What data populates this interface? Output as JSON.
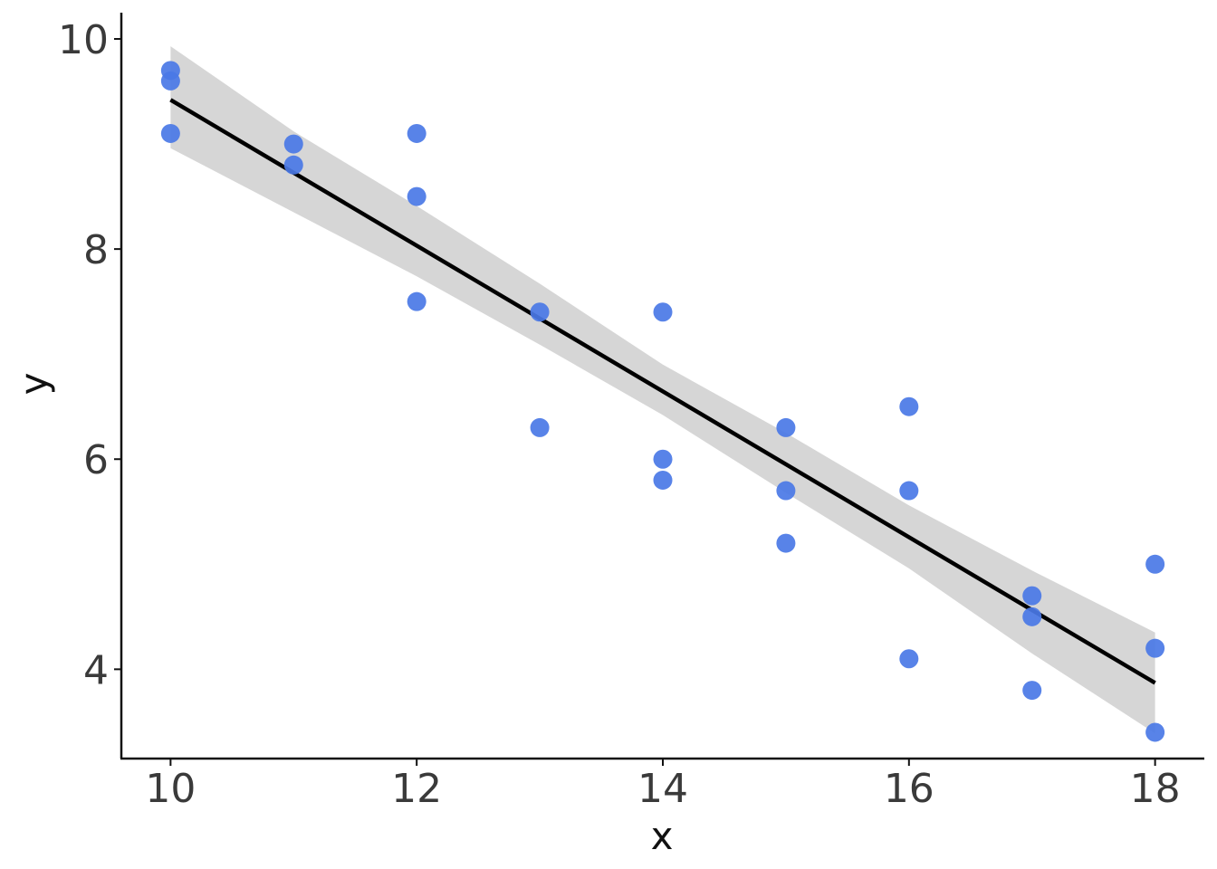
{
  "chart_data": {
    "type": "scatter",
    "xlabel": "x",
    "ylabel": "y",
    "xlim": [
      9.6,
      18.4
    ],
    "ylim": [
      3.15,
      10.25
    ],
    "xticks": [
      10,
      12,
      14,
      16,
      18
    ],
    "yticks": [
      4,
      6,
      8,
      10
    ],
    "grid": false,
    "legend": "none",
    "colors": {
      "points": "#4a78e6",
      "line": "#000000",
      "band": "#d6d6d6",
      "axis": "#111111",
      "tick_label": "#3a3a3a"
    },
    "points": [
      {
        "x": 10,
        "y": 9.7
      },
      {
        "x": 10,
        "y": 9.6
      },
      {
        "x": 10,
        "y": 9.1
      },
      {
        "x": 11,
        "y": 9.0
      },
      {
        "x": 11,
        "y": 8.8
      },
      {
        "x": 12,
        "y": 9.1
      },
      {
        "x": 12,
        "y": 8.5
      },
      {
        "x": 12,
        "y": 7.5
      },
      {
        "x": 13,
        "y": 7.4
      },
      {
        "x": 13,
        "y": 6.3
      },
      {
        "x": 14,
        "y": 7.4
      },
      {
        "x": 14,
        "y": 6.0
      },
      {
        "x": 14,
        "y": 5.8
      },
      {
        "x": 15,
        "y": 6.3
      },
      {
        "x": 15,
        "y": 5.7
      },
      {
        "x": 15,
        "y": 5.2
      },
      {
        "x": 16,
        "y": 6.5
      },
      {
        "x": 16,
        "y": 5.7
      },
      {
        "x": 16,
        "y": 4.1
      },
      {
        "x": 17,
        "y": 4.7
      },
      {
        "x": 17,
        "y": 4.5
      },
      {
        "x": 17,
        "y": 3.8
      },
      {
        "x": 18,
        "y": 5.0
      },
      {
        "x": 18,
        "y": 4.2
      },
      {
        "x": 18,
        "y": 3.4
      }
    ],
    "fit": {
      "method": "linear",
      "x": [
        10,
        18
      ],
      "y": [
        9.42,
        3.87
      ]
    },
    "confidence_band": {
      "x": [
        10,
        11,
        12,
        13,
        14,
        15,
        16,
        17,
        18
      ],
      "lower": [
        8.96,
        8.35,
        7.74,
        7.09,
        6.42,
        5.68,
        4.96,
        4.15,
        3.39
      ],
      "upper": [
        9.93,
        9.12,
        8.41,
        7.67,
        6.9,
        6.25,
        5.56,
        4.94,
        4.35
      ]
    }
  }
}
